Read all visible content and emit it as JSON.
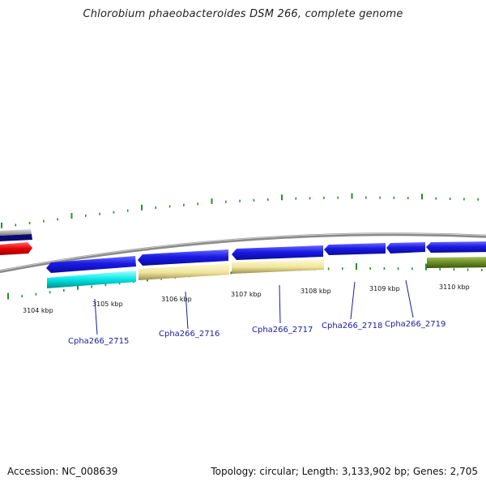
{
  "title": "Chlorobium phaeobacteroides DSM 266, complete genome",
  "footer": {
    "accession": "Accession: NC_008639",
    "summary": "Topology: circular; Length: 3,133,902 bp; Genes: 2,705"
  },
  "axis": {
    "unit": "kbp",
    "tick_labels": [
      "3104 kbp",
      "3105 kbp",
      "3106 kbp",
      "3107 kbp",
      "3108 kbp",
      "3109 kbp",
      "3110 kbp"
    ]
  },
  "genes": [
    {
      "label": "Cpha266_2715",
      "strand": "reverse",
      "feature_color": "#00e5e5"
    },
    {
      "label": "Cpha266_2716",
      "strand": "reverse",
      "feature_color": "#f0e49a"
    },
    {
      "label": "Cpha266_2717",
      "strand": "reverse",
      "feature_color": "#f0e49a"
    },
    {
      "label": "Cpha266_2718",
      "strand": "reverse",
      "feature_color": null
    },
    {
      "label": "Cpha266_2719",
      "strand": "reverse",
      "feature_color": null
    }
  ],
  "colors": {
    "gene_reverse": "#1a1ae6",
    "gene_forward_red": "#e60000",
    "gene_forward_navy": "#0a0a70",
    "rna_cyan": "#00e5e5",
    "rna_khaki": "#f0e49a",
    "rna_olive": "#6b8e23",
    "backbone": "#8a8a8a",
    "tick": "#2e8b2e"
  }
}
